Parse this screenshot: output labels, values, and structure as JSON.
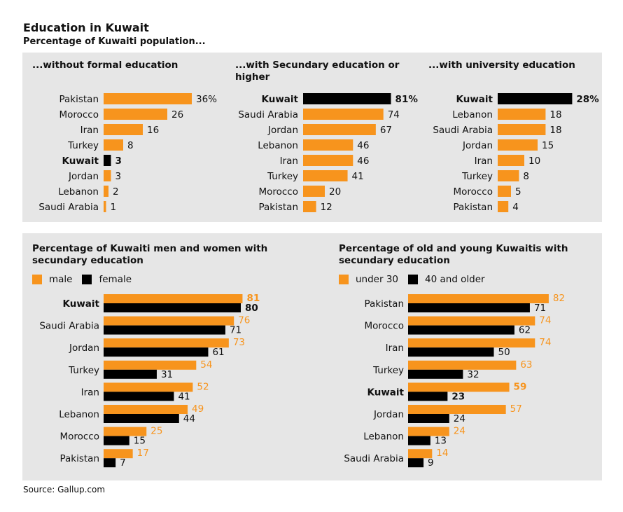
{
  "title": "Education in Kuwait",
  "subtitle": "Percentage of Kuwaiti population...",
  "source": "Source: Gallup.com",
  "colors": {
    "orange": "#f7941d",
    "black": "#000000",
    "panel": "#e6e6e6"
  },
  "chart_data": [
    {
      "type": "bar",
      "title": "...without formal education",
      "highlight": "Kuwait",
      "categories": [
        "Pakistan",
        "Morocco",
        "Iran",
        "Turkey",
        "Kuwait",
        "Jordan",
        "Lebanon",
        "Saudi Arabia"
      ],
      "values": [
        36,
        26,
        16,
        8,
        3,
        3,
        2,
        1
      ],
      "value_labels": [
        "36%",
        "26",
        "16",
        "8",
        "3",
        "3",
        "2",
        "1"
      ]
    },
    {
      "type": "bar",
      "title": "...with Secundary education or higher",
      "highlight": "Kuwait",
      "categories": [
        "Kuwait",
        "Saudi Arabia",
        "Jordan",
        "Lebanon",
        "Iran",
        "Turkey",
        "Morocco",
        "Pakistan"
      ],
      "values": [
        81,
        74,
        67,
        46,
        46,
        41,
        20,
        12
      ],
      "value_labels": [
        "81%",
        "74",
        "67",
        "46",
        "46",
        "41",
        "20",
        "12"
      ]
    },
    {
      "type": "bar",
      "title": "...with university education",
      "highlight": "Kuwait",
      "categories": [
        "Kuwait",
        "Lebanon",
        "Saudi Arabia",
        "Jordan",
        "Iran",
        "Turkey",
        "Morocco",
        "Pakistan"
      ],
      "values": [
        28,
        18,
        18,
        15,
        10,
        8,
        5,
        4
      ],
      "value_labels": [
        "28%",
        "18",
        "18",
        "15",
        "10",
        "8",
        "5",
        "4"
      ]
    },
    {
      "type": "bar",
      "title": "Percentage of Kuwaiti men and women with secundary education",
      "highlight": "Kuwait",
      "categories": [
        "Kuwait",
        "Saudi Arabia",
        "Jordan",
        "Turkey",
        "Iran",
        "Lebanon",
        "Morocco",
        "Pakistan"
      ],
      "series": [
        {
          "name": "male",
          "values": [
            81,
            76,
            73,
            54,
            52,
            49,
            25,
            17
          ]
        },
        {
          "name": "female",
          "values": [
            80,
            71,
            61,
            31,
            41,
            44,
            15,
            7
          ]
        }
      ]
    },
    {
      "type": "bar",
      "title": "Percentage of old and young Kuwaitis with secundary education",
      "highlight": "Kuwait",
      "categories": [
        "Pakistan",
        "Morocco",
        "Iran",
        "Turkey",
        "Kuwait",
        "Jordan",
        "Lebanon",
        "Saudi Arabia"
      ],
      "series": [
        {
          "name": "under 30",
          "values": [
            82,
            74,
            74,
            63,
            59,
            57,
            24,
            14
          ]
        },
        {
          "name": "40 and older",
          "values": [
            71,
            62,
            50,
            32,
            23,
            24,
            13,
            9
          ]
        }
      ]
    }
  ]
}
